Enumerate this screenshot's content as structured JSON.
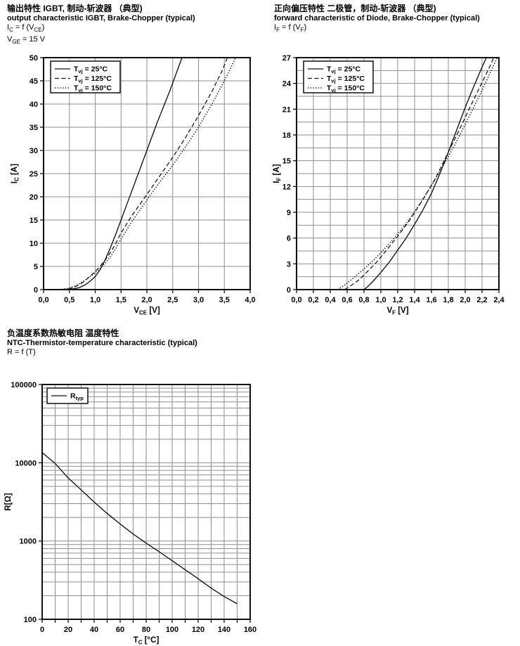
{
  "colors": {
    "grid": "#8f8f8f",
    "axis": "#111111",
    "curve": "#111111",
    "text": "#000000",
    "background": "#ffffff"
  },
  "chart_data": [
    {
      "type": "line",
      "title_zh": "输出特性 IGBT, 制动-斩波器 （典型)",
      "title_en": "output characteristic IGBT, Brake-Chopper (typical)",
      "formula_lines": [
        "I_{C} = f (V_{CE})",
        "V_{GE} = 15 V"
      ],
      "xlabel": "V_{CE} [V]",
      "ylabel": "I_{C} [A]",
      "xlim": [
        0,
        4
      ],
      "ylim": [
        0,
        50
      ],
      "xscale": "linear",
      "yscale": "linear",
      "grid": true,
      "legend_position": "top-left",
      "x_tick_labels": [
        "0,0",
        "0,5",
        "1,0",
        "1,5",
        "2,0",
        "2,5",
        "3,0",
        "3,5",
        "4,0"
      ],
      "y_tick_labels": [
        "0",
        "5",
        "10",
        "15",
        "20",
        "25",
        "30",
        "35",
        "40",
        "45",
        "50"
      ],
      "x_grid_step": 0.5,
      "y_grid_step": 5,
      "series": [
        {
          "name": "T_{vj} = 25°C",
          "style": "solid",
          "points": [
            [
              0,
              0
            ],
            [
              0.3,
              0.02
            ],
            [
              0.5,
              0.08
            ],
            [
              0.6,
              0.2
            ],
            [
              0.7,
              0.45
            ],
            [
              0.8,
              1
            ],
            [
              0.9,
              1.8
            ],
            [
              1,
              2.8
            ],
            [
              1.1,
              4.4
            ],
            [
              1.2,
              6.6
            ],
            [
              1.3,
              9.2
            ],
            [
              1.4,
              12
            ],
            [
              1.5,
              15
            ],
            [
              1.6,
              18
            ],
            [
              1.8,
              24
            ],
            [
              2,
              30
            ],
            [
              2.2,
              36
            ],
            [
              2.45,
              43
            ],
            [
              2.68,
              50
            ]
          ]
        },
        {
          "name": "T_{vj} = 125°C",
          "style": "dashed",
          "points": [
            [
              0.35,
              0.02
            ],
            [
              0.5,
              0.2
            ],
            [
              0.6,
              0.55
            ],
            [
              0.7,
              1.1
            ],
            [
              0.8,
              1.9
            ],
            [
              0.9,
              2.9
            ],
            [
              1,
              3.9
            ],
            [
              1.1,
              5.1
            ],
            [
              1.2,
              6.5
            ],
            [
              1.3,
              8.1
            ],
            [
              1.4,
              10
            ],
            [
              1.5,
              12.2
            ],
            [
              1.7,
              15.8
            ],
            [
              2,
              20.5
            ],
            [
              2.25,
              24.5
            ],
            [
              2.5,
              28.5
            ],
            [
              2.75,
              32.8
            ],
            [
              3,
              37.5
            ],
            [
              3.25,
              42.5
            ],
            [
              3.45,
              47
            ],
            [
              3.56,
              50
            ]
          ]
        },
        {
          "name": "T_{vj} = 150°C",
          "style": "dotted",
          "points": [
            [
              0.3,
              0.02
            ],
            [
              0.45,
              0.2
            ],
            [
              0.55,
              0.55
            ],
            [
              0.7,
              1.3
            ],
            [
              0.8,
              2
            ],
            [
              0.9,
              2.8
            ],
            [
              1,
              3.6
            ],
            [
              1.1,
              4.6
            ],
            [
              1.2,
              5.8
            ],
            [
              1.3,
              7.2
            ],
            [
              1.4,
              8.9
            ],
            [
              1.5,
              10.9
            ],
            [
              1.7,
              14.5
            ],
            [
              2,
              19.3
            ],
            [
              2.25,
              23.2
            ],
            [
              2.5,
              26.8
            ],
            [
              2.75,
              30.8
            ],
            [
              3,
              35
            ],
            [
              3.25,
              39.8
            ],
            [
              3.5,
              45
            ],
            [
              3.72,
              50
            ]
          ]
        }
      ]
    },
    {
      "type": "line",
      "title_zh": "正向偏压特性 二极管，制动-斩波器 （典型)",
      "title_en": "forward characteristic of Diode, Brake-Chopper (typical)",
      "formula_lines": [
        "I_{F} = f (V_{F})"
      ],
      "xlabel": "V_{F} [V]",
      "ylabel": "I_{F} [A]",
      "xlim": [
        0,
        2.4
      ],
      "ylim": [
        0,
        27
      ],
      "xscale": "linear",
      "yscale": "linear",
      "grid": true,
      "legend_position": "top-left",
      "x_tick_labels": [
        "0,0",
        "0,2",
        "0,4",
        "0,6",
        "0,8",
        "1,0",
        "1,2",
        "1,4",
        "1,6",
        "1,8",
        "2,0",
        "2,2",
        "2,4"
      ],
      "y_tick_labels": [
        "0",
        "3",
        "6",
        "9",
        "12",
        "15",
        "18",
        "21",
        "24",
        "27"
      ],
      "x_grid_step": 0.2,
      "y_grid_step": 1.5,
      "series": [
        {
          "name": "T_{vj} = 25°C",
          "style": "solid",
          "points": [
            [
              0.8,
              0
            ],
            [
              0.85,
              0.4
            ],
            [
              0.9,
              0.9
            ],
            [
              1,
              2
            ],
            [
              1.1,
              3.2
            ],
            [
              1.2,
              4.6
            ],
            [
              1.3,
              6
            ],
            [
              1.4,
              7.6
            ],
            [
              1.5,
              9.3
            ],
            [
              1.6,
              11.2
            ],
            [
              1.7,
              13.5
            ],
            [
              1.8,
              16
            ],
            [
              1.9,
              18.6
            ],
            [
              2,
              21.2
            ],
            [
              2.1,
              23.6
            ],
            [
              2.2,
              25.9
            ],
            [
              2.25,
              27
            ]
          ]
        },
        {
          "name": "T_{vj} = 125°C",
          "style": "dashed",
          "points": [
            [
              0.57,
              0
            ],
            [
              0.65,
              0.5
            ],
            [
              0.75,
              1.2
            ],
            [
              0.85,
              2.2
            ],
            [
              0.95,
              3.2
            ],
            [
              1.05,
              4.4
            ],
            [
              1.2,
              6.2
            ],
            [
              1.35,
              8.2
            ],
            [
              1.5,
              10.5
            ],
            [
              1.65,
              13
            ],
            [
              1.8,
              16
            ],
            [
              1.95,
              19
            ],
            [
              2.1,
              22.1
            ],
            [
              2.25,
              25.1
            ],
            [
              2.34,
              27
            ]
          ]
        },
        {
          "name": "T_{vj} = 150°C",
          "style": "dotted",
          "points": [
            [
              0.49,
              0
            ],
            [
              0.58,
              0.6
            ],
            [
              0.68,
              1.4
            ],
            [
              0.8,
              2.4
            ],
            [
              0.9,
              3.3
            ],
            [
              1,
              4.3
            ],
            [
              1.15,
              5.9
            ],
            [
              1.3,
              7.7
            ],
            [
              1.45,
              9.8
            ],
            [
              1.6,
              12.1
            ],
            [
              1.75,
              14.6
            ],
            [
              1.9,
              17.3
            ],
            [
              2.05,
              20.2
            ],
            [
              2.2,
              23.2
            ],
            [
              2.38,
              27
            ]
          ]
        }
      ]
    },
    {
      "type": "line",
      "title_zh": "负温度系数热敏电阻 温度特性",
      "title_en": "NTC-Thermistor-temperature characteristic (typical)",
      "formula_lines": [
        "R = f (T)"
      ],
      "xlabel": "T_{C} [°C]",
      "ylabel": "R[Ω]",
      "xlim": [
        0,
        160
      ],
      "ylim": [
        100,
        100000
      ],
      "xscale": "linear",
      "yscale": "log",
      "grid": true,
      "legend_position": "top-left",
      "x_tick_labels": [
        "0",
        "20",
        "40",
        "60",
        "80",
        "100",
        "120",
        "140",
        "160"
      ],
      "y_tick_labels": [
        "100",
        "1000",
        "10000",
        "100000"
      ],
      "x_grid_step": 10,
      "series": [
        {
          "name": "R_{typ}",
          "style": "solid",
          "points": [
            [
              0,
              13500
            ],
            [
              10,
              9800
            ],
            [
              20,
              6400
            ],
            [
              30,
              4500
            ],
            [
              40,
              3150
            ],
            [
              50,
              2250
            ],
            [
              60,
              1650
            ],
            [
              70,
              1230
            ],
            [
              80,
              940
            ],
            [
              90,
              730
            ],
            [
              100,
              560
            ],
            [
              110,
              430
            ],
            [
              120,
              330
            ],
            [
              130,
              250
            ],
            [
              140,
              195
            ],
            [
              150,
              158
            ]
          ]
        }
      ]
    }
  ]
}
